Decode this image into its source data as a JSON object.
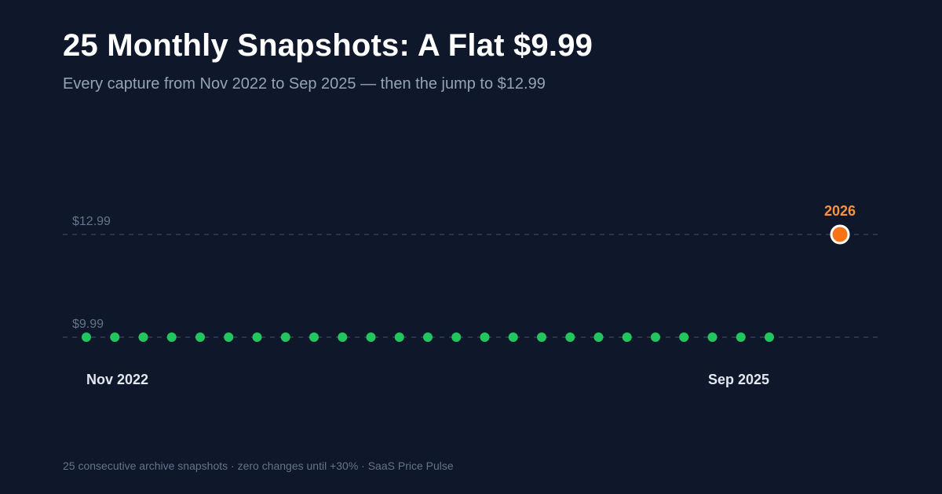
{
  "title": "25 Monthly Snapshots: A Flat $9.99",
  "subtitle": "Every capture from Nov 2022 to Sep 2025 — then the jump to $12.99",
  "footer": "25 consecutive archive snapshots · zero changes until +30% · SaaS Price Pulse",
  "colors": {
    "background": "#0f172a",
    "snapshot_point": "#22c55e",
    "jump_point": "#f97316",
    "jump_label": "#fb923c",
    "reference_line": "#475569",
    "reference_label": "#64748b",
    "endpoint_label": "#e2e8f0"
  },
  "chart_data": {
    "type": "scatter",
    "grid": false,
    "reference_lines": [
      {
        "label": "$12.99",
        "value": 12.99
      },
      {
        "label": "$9.99",
        "value": 9.99
      }
    ],
    "series": [
      {
        "values": [
          9.99,
          9.99,
          9.99,
          9.99,
          9.99,
          9.99,
          9.99,
          9.99,
          9.99,
          9.99,
          9.99,
          9.99,
          9.99,
          9.99,
          9.99,
          9.99,
          9.99,
          9.99,
          9.99,
          9.99,
          9.99,
          9.99,
          9.99,
          9.99,
          9.99
        ],
        "start_label": "Nov 2022",
        "end_label": "Sep 2025"
      }
    ],
    "jump": {
      "label": "2026",
      "value": 12.99
    }
  }
}
